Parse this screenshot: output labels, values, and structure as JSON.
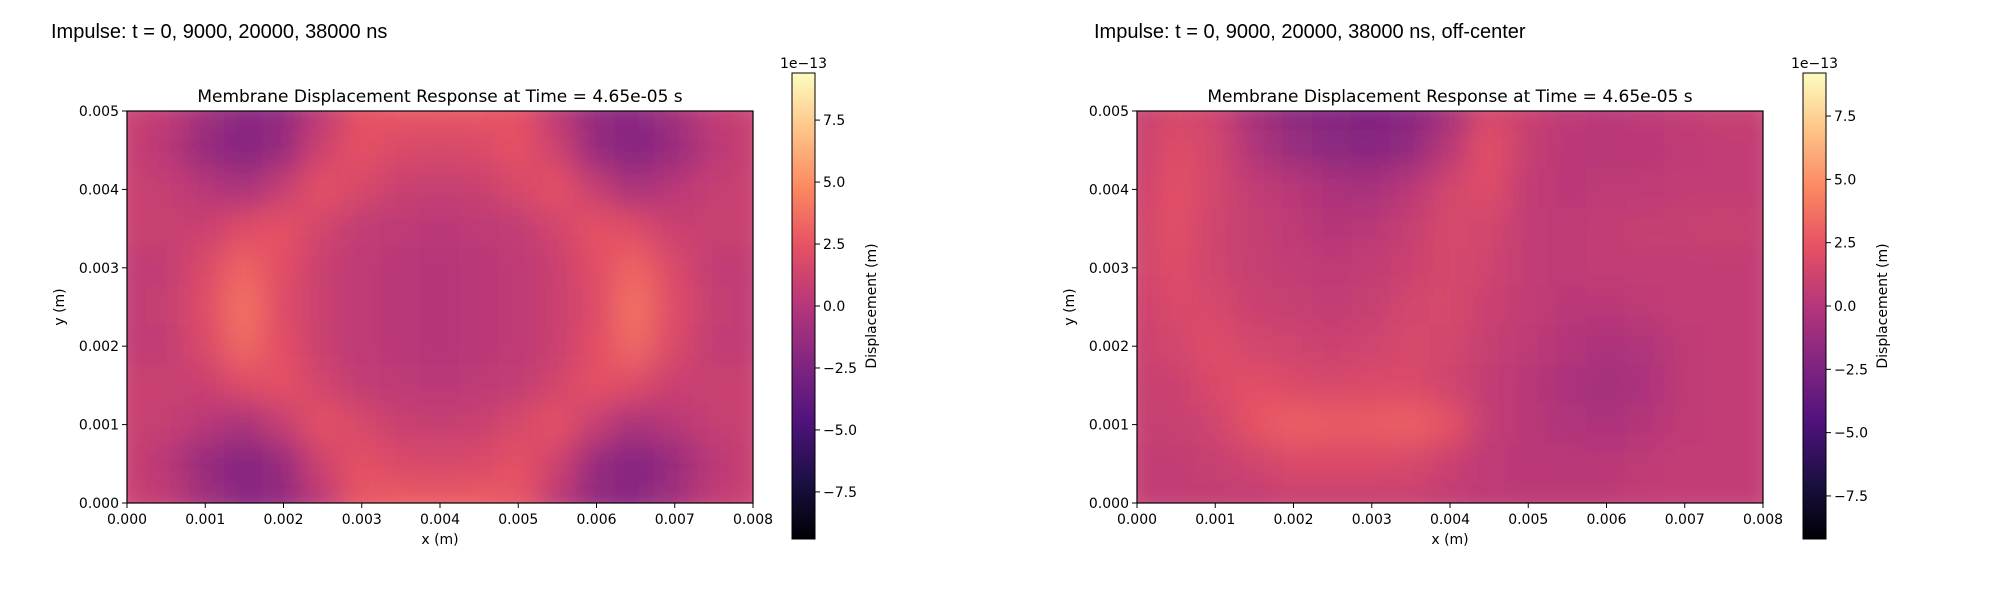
{
  "panels": [
    {
      "header": "Impulse: t = 0, 9000, 20000, 38000 ns"
    },
    {
      "header": "Impulse: t = 0, 9000, 20000, 38000 ns, off-center"
    }
  ],
  "chart_data": [
    {
      "type": "heatmap",
      "title": "Membrane Displacement Response at Time = 4.65e-05 s",
      "xlabel": "x (m)",
      "ylabel": "y (m)",
      "xlim": [
        0,
        0.008
      ],
      "ylim": [
        0,
        0.005
      ],
      "xticks": [
        0.0,
        0.001,
        0.002,
        0.003,
        0.004,
        0.005,
        0.006,
        0.007,
        0.008
      ],
      "xtick_labels": [
        "0.000",
        "0.001",
        "0.002",
        "0.003",
        "0.004",
        "0.005",
        "0.006",
        "0.007",
        "0.008"
      ],
      "yticks": [
        0.0,
        0.001,
        0.002,
        0.003,
        0.004,
        0.005
      ],
      "ytick_labels": [
        "0.000",
        "0.001",
        "0.002",
        "0.003",
        "0.004",
        "0.005"
      ],
      "colormap": "magma",
      "colorbar": {
        "label": "Displacement (m)",
        "offset_text": "1e−13",
        "vmin": -9.4,
        "vmax": 9.4,
        "ticks": [
          -7.5,
          -5.0,
          -2.5,
          0.0,
          2.5,
          5.0,
          7.5
        ],
        "tick_labels": [
          "−7.5",
          "−5.0",
          "−2.5",
          "0.0",
          "2.5",
          "5.0",
          "7.5"
        ]
      },
      "grid": false,
      "x_units_per_cell": 0.0005,
      "z_rows_top_to_bottom": [
        [
          1.0,
          0.6,
          -0.8,
          -2.0,
          -1.6,
          0.4,
          2.4,
          2.6,
          2.6,
          2.6,
          2.4,
          0.4,
          -1.6,
          -2.0,
          -0.8,
          0.6,
          1.0
        ],
        [
          1.0,
          0.2,
          -1.4,
          -2.2,
          -1.4,
          1.2,
          2.4,
          1.8,
          1.6,
          1.8,
          2.4,
          1.2,
          -1.4,
          -2.2,
          -1.4,
          0.2,
          1.0
        ],
        [
          1.0,
          0.8,
          0.2,
          -0.6,
          0.8,
          2.4,
          1.6,
          1.0,
          0.8,
          1.0,
          1.6,
          2.4,
          0.8,
          -0.6,
          0.2,
          0.8,
          1.0
        ],
        [
          1.0,
          1.0,
          1.0,
          2.0,
          2.4,
          1.4,
          0.6,
          0.4,
          0.2,
          0.4,
          0.6,
          1.4,
          2.4,
          2.0,
          1.0,
          1.0,
          1.0
        ],
        [
          0.6,
          0.6,
          1.8,
          3.2,
          2.2,
          1.0,
          0.4,
          0.2,
          0.0,
          0.2,
          0.4,
          1.0,
          2.2,
          3.2,
          1.8,
          0.6,
          0.6
        ],
        [
          0.6,
          0.8,
          2.0,
          3.8,
          2.0,
          1.0,
          0.4,
          0.2,
          0.0,
          0.2,
          0.4,
          1.0,
          2.0,
          3.8,
          2.0,
          0.8,
          0.6
        ],
        [
          0.6,
          0.6,
          1.8,
          3.4,
          2.2,
          1.0,
          0.4,
          0.2,
          0.0,
          0.2,
          0.4,
          1.0,
          2.2,
          3.4,
          1.8,
          0.6,
          0.6
        ],
        [
          1.0,
          1.0,
          1.0,
          2.0,
          2.4,
          1.4,
          0.6,
          0.4,
          0.2,
          0.4,
          0.6,
          1.4,
          2.4,
          2.0,
          1.0,
          1.0,
          1.0
        ],
        [
          1.0,
          0.8,
          0.2,
          -0.6,
          0.8,
          2.4,
          1.6,
          1.0,
          0.8,
          1.0,
          1.6,
          2.4,
          0.8,
          -0.6,
          0.2,
          0.8,
          1.0
        ],
        [
          1.0,
          0.2,
          -1.4,
          -2.2,
          -1.4,
          1.2,
          2.4,
          1.8,
          1.6,
          1.8,
          2.4,
          1.2,
          -1.4,
          -2.2,
          -1.4,
          0.2,
          1.0
        ],
        [
          1.0,
          0.6,
          -0.8,
          -2.0,
          -1.6,
          0.4,
          2.6,
          2.8,
          2.8,
          2.8,
          2.6,
          0.4,
          -1.6,
          -2.0,
          -0.8,
          0.6,
          1.0
        ]
      ]
    },
    {
      "type": "heatmap",
      "title": "Membrane Displacement Response at Time = 4.65e-05 s",
      "xlabel": "x (m)",
      "ylabel": "y (m)",
      "xlim": [
        0,
        0.008
      ],
      "ylim": [
        0,
        0.005
      ],
      "xticks": [
        0.0,
        0.001,
        0.002,
        0.003,
        0.004,
        0.005,
        0.006,
        0.007,
        0.008
      ],
      "xtick_labels": [
        "0.000",
        "0.001",
        "0.002",
        "0.003",
        "0.004",
        "0.005",
        "0.006",
        "0.007",
        "0.008"
      ],
      "yticks": [
        0.0,
        0.001,
        0.002,
        0.003,
        0.004,
        0.005
      ],
      "ytick_labels": [
        "0.000",
        "0.001",
        "0.002",
        "0.003",
        "0.004",
        "0.005"
      ],
      "colormap": "magma",
      "colorbar": {
        "label": "Displacement (m)",
        "offset_text": "1e−13",
        "vmin": -9.2,
        "vmax": 9.2,
        "ticks": [
          -7.5,
          -5.0,
          -2.5,
          0.0,
          2.5,
          5.0,
          7.5
        ],
        "tick_labels": [
          "−7.5",
          "−5.0",
          "−2.5",
          "0.0",
          "2.5",
          "5.0",
          "7.5"
        ]
      },
      "grid": false,
      "z_rows_top_to_bottom": [
        [
          0.8,
          1.6,
          1.2,
          -0.6,
          -1.8,
          -2.2,
          -2.4,
          -2.0,
          -0.8,
          1.6,
          1.0,
          0.4,
          0.2,
          0.4,
          0.6,
          0.8,
          0.8
        ],
        [
          0.8,
          2.0,
          1.4,
          -0.2,
          -1.2,
          -1.8,
          -2.0,
          -1.6,
          0.2,
          2.2,
          0.8,
          0.2,
          0.2,
          0.2,
          0.4,
          0.6,
          0.6
        ],
        [
          1.0,
          2.2,
          1.4,
          0.6,
          0.2,
          -0.4,
          -0.6,
          0.2,
          1.4,
          2.0,
          0.6,
          0.2,
          0.4,
          0.4,
          0.6,
          0.6,
          0.6
        ],
        [
          1.2,
          2.2,
          1.2,
          0.8,
          0.4,
          0.0,
          0.2,
          0.8,
          1.6,
          1.4,
          0.6,
          0.4,
          0.6,
          0.8,
          0.8,
          1.0,
          0.8
        ],
        [
          1.2,
          2.0,
          1.2,
          0.8,
          0.6,
          0.4,
          0.6,
          1.0,
          1.6,
          1.2,
          0.6,
          0.4,
          0.6,
          0.6,
          0.6,
          0.6,
          0.6
        ],
        [
          1.0,
          1.8,
          1.6,
          1.0,
          0.8,
          0.6,
          0.8,
          1.4,
          1.6,
          1.0,
          0.6,
          0.2,
          0.2,
          0.4,
          0.6,
          0.6,
          0.6
        ],
        [
          1.0,
          1.4,
          2.0,
          1.4,
          1.2,
          1.0,
          1.2,
          1.6,
          1.4,
          0.8,
          0.4,
          0.0,
          -0.4,
          -0.2,
          0.4,
          0.6,
          0.6
        ],
        [
          0.8,
          1.0,
          1.8,
          2.2,
          1.8,
          1.6,
          1.8,
          1.8,
          1.2,
          0.6,
          0.2,
          -0.4,
          -0.8,
          -0.4,
          0.4,
          0.6,
          0.6
        ],
        [
          0.8,
          0.8,
          1.2,
          2.4,
          3.0,
          2.8,
          2.8,
          3.0,
          2.4,
          0.6,
          0.2,
          -0.2,
          -0.4,
          0.0,
          0.4,
          0.6,
          0.6
        ],
        [
          0.6,
          0.6,
          0.8,
          1.2,
          1.8,
          1.8,
          1.8,
          1.6,
          1.0,
          0.4,
          0.2,
          0.2,
          0.2,
          0.4,
          0.6,
          0.6,
          0.6
        ],
        [
          0.6,
          0.6,
          0.6,
          0.6,
          0.8,
          0.8,
          0.8,
          0.8,
          0.6,
          0.4,
          0.4,
          0.4,
          0.4,
          0.6,
          0.6,
          0.6,
          0.6
        ]
      ]
    }
  ]
}
